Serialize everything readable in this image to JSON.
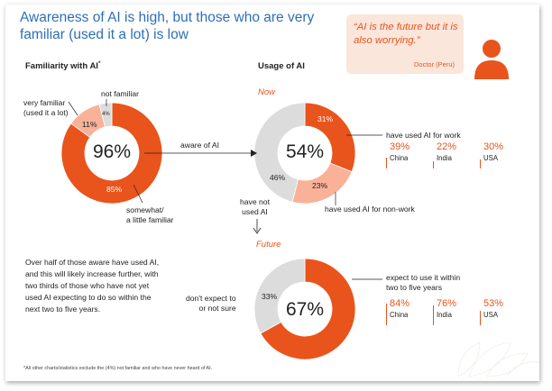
{
  "title": "Awareness of AI is high, but those who are very familiar (used it a lot) is low",
  "quote": {
    "text": "“AI is the future but it is also worrying.”",
    "source": "Doctor (Peru)"
  },
  "colors": {
    "orange": "#e8541c",
    "light_orange": "#f9b198",
    "grey": "#dcdcdc",
    "blue": "#2c6fb6"
  },
  "familiarity": {
    "header": "Familiarity with AI",
    "header_marker": "*",
    "very_familiar_label": "very familiar\n(used it a lot)",
    "not_familiar_label": "not familiar",
    "somewhat_label": "somewhat/\na little familiar",
    "center": "96%",
    "pct_very": "11%",
    "pct_not": "4%",
    "pct_somewhat": "85%",
    "arrow_label": "aware of AI"
  },
  "usage": {
    "header": "Usage of AI",
    "now_label": "Now",
    "future_label": "Future",
    "now": {
      "center": "54%",
      "pct_work": "31%",
      "pct_nonwork": "23%",
      "pct_notused": "46%",
      "work_label": "have used AI for work",
      "nonwork_label": "have used AI for non-work",
      "notused_label": "have not\nused AI"
    },
    "future": {
      "center": "67%",
      "pct_not": "33%",
      "expect_label": "expect to use it within\ntwo to five years",
      "not_label": "don't expect to\nor not sure"
    }
  },
  "country_stats": {
    "work": [
      {
        "value": "39%",
        "country": "China"
      },
      {
        "value": "22%",
        "country": "India"
      },
      {
        "value": "30%",
        "country": "USA"
      }
    ],
    "future": [
      {
        "value": "84%",
        "country": "China"
      },
      {
        "value": "76%",
        "country": "India"
      },
      {
        "value": "53%",
        "country": "USA"
      }
    ]
  },
  "body_text": "Over half of those aware have used AI, and this will likely increase further, with two thirds of those who have not yet used AI expecting to do so within the next two to five years.",
  "footnote": "*All other charts/statistics exclude the (4%) not familiar and who have never heard of AI.",
  "chart_data": [
    {
      "type": "pie",
      "title": "Familiarity with AI",
      "categories": [
        "very familiar (used it a lot)",
        "not familiar",
        "somewhat/a little familiar"
      ],
      "values": [
        11,
        4,
        85
      ]
    },
    {
      "type": "pie",
      "title": "Usage of AI",
      "subtitle": "Now",
      "categories": [
        "have used AI for work",
        "have used AI for non-work",
        "have not used AI"
      ],
      "values": [
        31,
        23,
        46
      ]
    },
    {
      "type": "pie",
      "title": "Usage of AI",
      "subtitle": "Future",
      "categories": [
        "expect to use it within two to five years",
        "don't expect to or not sure"
      ],
      "values": [
        67,
        33
      ]
    },
    {
      "type": "table",
      "title": "have used AI for work",
      "categories": [
        "China",
        "India",
        "USA"
      ],
      "values": [
        39,
        22,
        30
      ]
    },
    {
      "type": "table",
      "title": "expect to use it within two to five years",
      "categories": [
        "China",
        "India",
        "USA"
      ],
      "values": [
        84,
        76,
        53
      ]
    }
  ]
}
